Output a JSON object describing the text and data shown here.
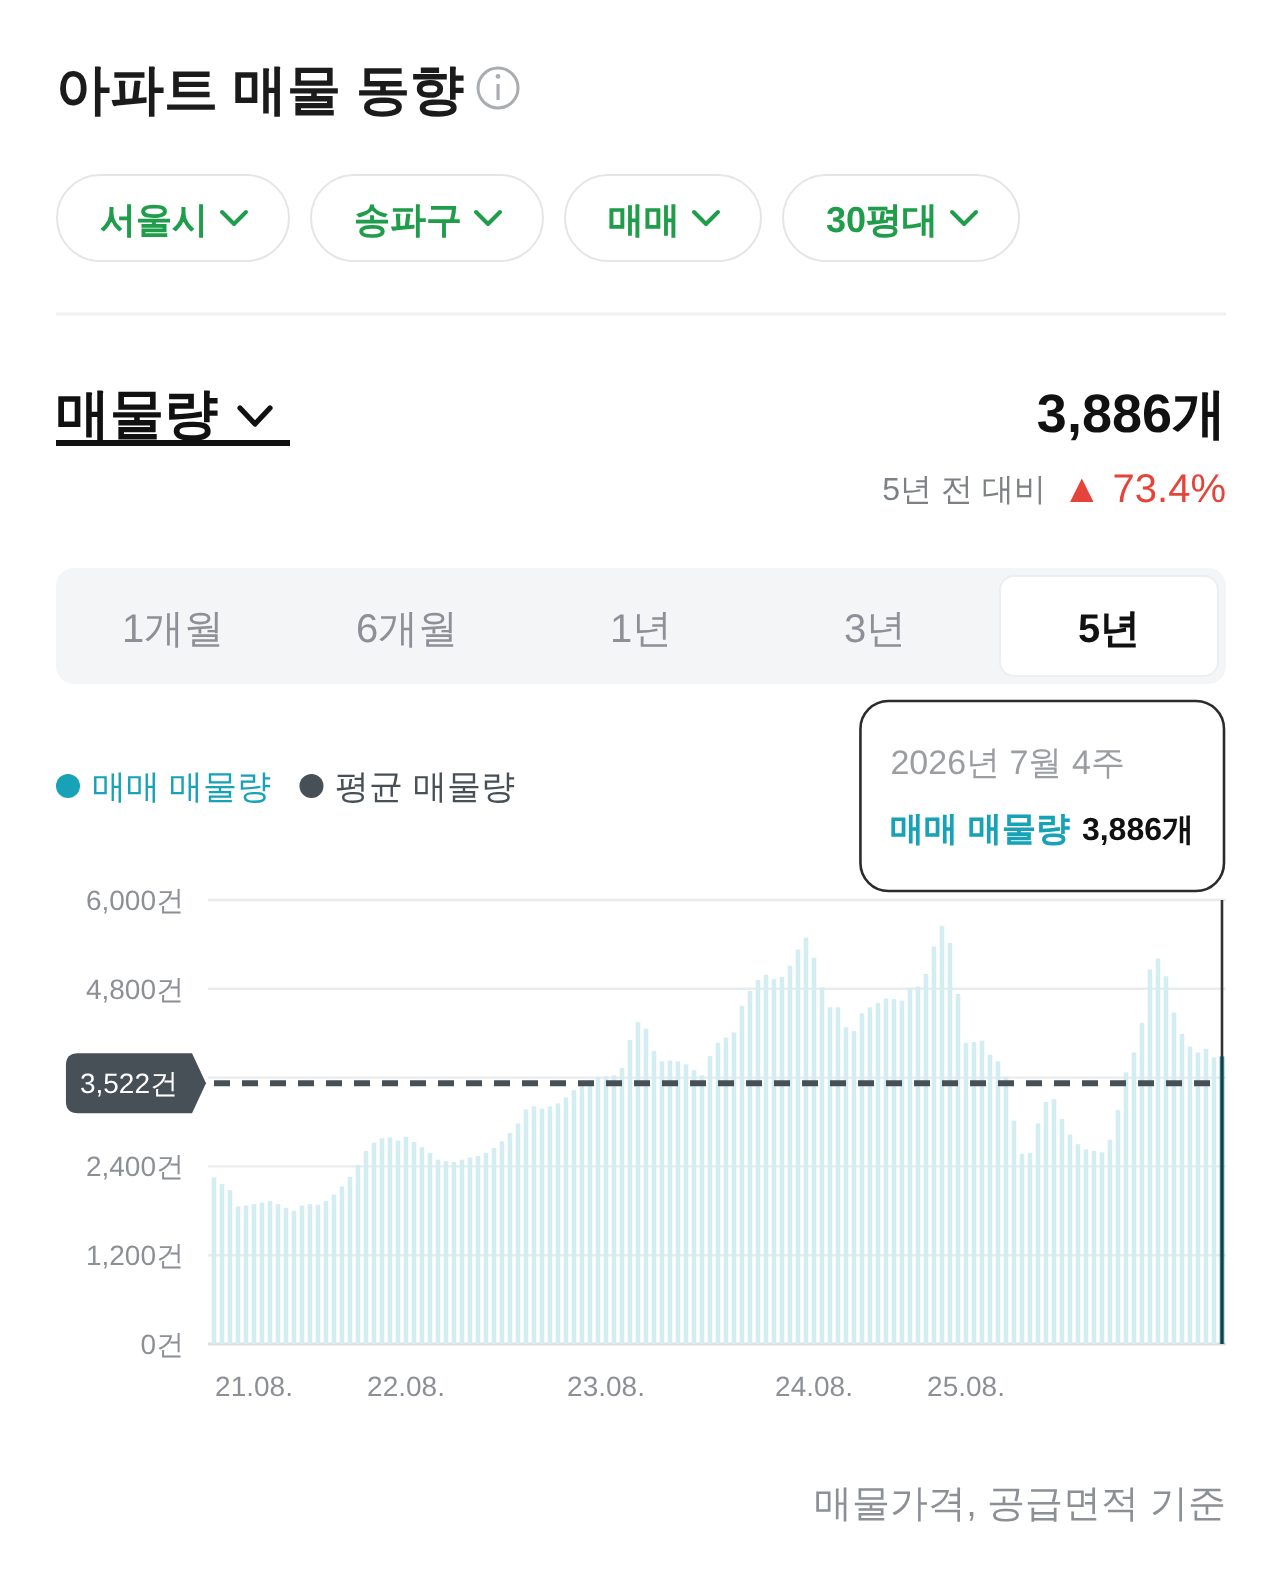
{
  "chart_data": {
    "type": "bar",
    "title": "아파트 매물 동향",
    "categories": [
      null,
      null,
      null,
      null,
      null,
      "21.08.",
      null,
      null,
      null,
      null,
      null,
      null,
      null,
      null,
      null,
      null,
      null,
      null,
      null,
      null,
      null,
      null,
      null,
      null,
      "22.08.",
      null,
      null,
      null,
      null,
      null,
      null,
      null,
      null,
      null,
      null,
      null,
      null,
      null,
      null,
      null,
      null,
      null,
      null,
      null,
      null,
      null,
      null,
      null,
      null,
      "23.08.",
      null,
      null,
      null,
      null,
      null,
      null,
      null,
      null,
      null,
      null,
      null,
      null,
      null,
      null,
      null,
      null,
      null,
      null,
      null,
      null,
      null,
      null,
      null,
      null,
      null,
      "24.08.",
      null,
      null,
      null,
      null,
      null,
      null,
      null,
      null,
      null,
      null,
      null,
      null,
      null,
      null,
      null,
      null,
      null,
      null,
      "25.08.",
      null,
      null,
      null,
      null,
      null,
      null,
      null,
      null,
      null,
      null,
      null,
      null,
      null,
      null,
      null,
      null,
      null,
      null,
      null,
      null,
      null,
      null,
      null,
      null,
      null,
      null,
      null,
      null,
      null,
      null,
      null,
      null
    ],
    "series": [
      {
        "name": "매매 매물량",
        "color": "#17a2b8",
        "colors": [
          "#d3edf2",
          "#d3edf2",
          "#d3edf2",
          "#d3edf2",
          "#d3edf2",
          "#d3edf2",
          "#d3edf2",
          "#d3edf2",
          "#d3edf2",
          "#d3edf2",
          "#d3edf2",
          "#d3edf2",
          "#d3edf2",
          "#d3edf2",
          "#d3edf2",
          "#d3edf2",
          "#d3edf2",
          "#d3edf2",
          "#d3edf2",
          "#d3edf2",
          "#d3edf2",
          "#d3edf2",
          "#d3edf2",
          "#d3edf2",
          "#d3edf2",
          "#d3edf2",
          "#d3edf2",
          "#d3edf2",
          "#d3edf2",
          "#d3edf2",
          "#d3edf2",
          "#d3edf2",
          "#d3edf2",
          "#d3edf2",
          "#d3edf2",
          "#d3edf2",
          "#d3edf2",
          "#d3edf2",
          "#d3edf2",
          "#d3edf2",
          "#d3edf2",
          "#d3edf2",
          "#d3edf2",
          "#d3edf2",
          "#d3edf2",
          "#d3edf2",
          "#d3edf2",
          "#d3edf2",
          "#d3edf2",
          "#d3edf2",
          "#d3edf2",
          "#d3edf2",
          "#d3edf2",
          "#d3edf2",
          "#d3edf2",
          "#d3edf2",
          "#d3edf2",
          "#d3edf2",
          "#d3edf2",
          "#d3edf2",
          "#d3edf2",
          "#d3edf2",
          "#d3edf2",
          "#d3edf2",
          "#d3edf2",
          "#d3edf2",
          "#d3edf2",
          "#d3edf2",
          "#d3edf2",
          "#d3edf2",
          "#d3edf2",
          "#d3edf2",
          "#d3edf2",
          "#d3edf2",
          "#d3edf2",
          "#d3edf2",
          "#d3edf2",
          "#d3edf2",
          "#d3edf2",
          "#d3edf2",
          "#d3edf2",
          "#d3edf2",
          "#d3edf2",
          "#d3edf2",
          "#d3edf2",
          "#d3edf2",
          "#d3edf2",
          "#d3edf2",
          "#d3edf2",
          "#d3edf2",
          "#d3edf2",
          "#d3edf2",
          "#d3edf2",
          "#d3edf2",
          "#d3edf2",
          "#d3edf2",
          "#d3edf2",
          "#d3edf2",
          "#d3edf2",
          "#d3edf2",
          "#d3edf2",
          "#d3edf2",
          "#d3edf2",
          "#d3edf2",
          "#d3edf2",
          "#d3edf2",
          "#d3edf2",
          "#d3edf2",
          "#d3edf2",
          "#d3edf2",
          "#d3edf2",
          "#d3edf2",
          "#d3edf2",
          "#d3edf2",
          "#d3edf2",
          "#d3edf2",
          "#d3edf2",
          "#d3edf2",
          "#d3edf2",
          "#d3edf2",
          "#d3edf2",
          "#d3edf2",
          "#d3edf2",
          "#d3edf2",
          "#d3edf2",
          "#d3edf2",
          "#17a2b8"
        ],
        "values": [
          2250,
          2160,
          2080,
          1860,
          1870,
          1890,
          1910,
          1930,
          1890,
          1840,
          1800,
          1870,
          1890,
          1880,
          1930,
          2020,
          2130,
          2260,
          2420,
          2610,
          2720,
          2780,
          2790,
          2750,
          2800,
          2730,
          2660,
          2580,
          2490,
          2470,
          2460,
          2490,
          2520,
          2540,
          2580,
          2650,
          2740,
          2850,
          2980,
          3170,
          3210,
          3180,
          3210,
          3250,
          3330,
          3430,
          3520,
          3560,
          3610,
          3620,
          3630,
          3730,
          4110,
          4350,
          4260,
          3960,
          3820,
          3830,
          3820,
          3780,
          3700,
          3630,
          3890,
          4070,
          4140,
          4210,
          4570,
          4770,
          4920,
          4990,
          4930,
          4960,
          5110,
          5330,
          5490,
          5220,
          4820,
          4550,
          4550,
          4280,
          4230,
          4470,
          4550,
          4610,
          4670,
          4660,
          4640,
          4810,
          4830,
          5000,
          5370,
          5650,
          5420,
          4730,
          4070,
          4080,
          4100,
          3910,
          3820,
          3610,
          3020,
          2570,
          2580,
          2980,
          3270,
          3310,
          3040,
          2830,
          2700,
          2630,
          2610,
          2590,
          2760,
          3160,
          3670,
          3940,
          4340,
          5060,
          5210,
          4970,
          4480,
          4190,
          4020,
          3940,
          3990,
          3870,
          3886
        ]
      },
      {
        "name": "평균 매물량",
        "type": "line",
        "color": "#474f57",
        "line_style": "dashed",
        "values": [
          3522,
          3522,
          3522,
          3522,
          3522,
          3522,
          3522,
          3522,
          3522,
          3522,
          3522,
          3522,
          3522,
          3522,
          3522,
          3522,
          3522,
          3522,
          3522,
          3522,
          3522,
          3522,
          3522,
          3522,
          3522,
          3522,
          3522,
          3522,
          3522,
          3522,
          3522,
          3522,
          3522,
          3522,
          3522,
          3522,
          3522,
          3522,
          3522,
          3522,
          3522,
          3522,
          3522,
          3522,
          3522,
          3522,
          3522,
          3522,
          3522,
          3522,
          3522,
          3522,
          3522,
          3522,
          3522,
          3522,
          3522,
          3522,
          3522,
          3522,
          3522,
          3522,
          3522,
          3522,
          3522,
          3522,
          3522,
          3522,
          3522,
          3522,
          3522,
          3522,
          3522,
          3522,
          3522,
          3522,
          3522,
          3522,
          3522,
          3522,
          3522,
          3522,
          3522,
          3522,
          3522,
          3522,
          3522,
          3522,
          3522,
          3522,
          3522,
          3522,
          3522,
          3522,
          3522,
          3522,
          3522,
          3522,
          3522,
          3522,
          3522,
          3522,
          3522,
          3522,
          3522,
          3522,
          3522,
          3522,
          3522,
          3522,
          3522,
          3522,
          3522,
          3522,
          3522,
          3522,
          3522,
          3522,
          3522,
          3522,
          3522,
          3522,
          3522,
          3522,
          3522,
          3522,
          3522
        ],
        "value_labels": [
          "3,522건",
          null,
          null,
          null,
          null,
          null,
          null,
          null,
          null,
          null,
          null,
          null,
          null,
          null,
          null,
          null,
          null,
          null,
          null,
          null,
          null,
          null,
          null,
          null,
          null,
          null,
          null,
          null,
          null,
          null,
          null,
          null,
          null,
          null,
          null,
          null,
          null,
          null,
          null,
          null,
          null,
          null,
          null,
          null,
          null,
          null,
          null,
          null,
          null,
          null,
          null,
          null,
          null,
          null,
          null,
          null,
          null,
          null,
          null,
          null,
          null,
          null,
          null,
          null,
          null,
          null,
          null,
          null,
          null,
          null,
          null,
          null,
          null,
          null,
          null,
          null,
          null,
          null,
          null,
          null,
          null,
          null,
          null,
          null,
          null,
          null,
          null,
          null,
          null,
          null,
          null,
          null,
          null,
          null,
          null,
          null,
          null,
          null,
          null,
          null,
          null,
          null,
          null,
          null,
          null,
          null,
          null,
          null,
          null,
          null,
          null,
          null,
          null,
          null,
          null,
          null,
          null,
          null,
          null,
          null,
          null,
          null,
          null,
          null,
          null,
          null,
          null
        ]
      }
    ],
    "ylim": [
      0,
      6000
    ],
    "yticks": [
      {
        "value": 0,
        "label": "0건"
      },
      {
        "value": 1200,
        "label": "1,200건"
      },
      {
        "value": 2400,
        "label": "2,400건"
      },
      {
        "value": 3600,
        "label": null
      },
      {
        "value": 4800,
        "label": "4,800건"
      },
      {
        "value": 6000,
        "label": "6,000건"
      }
    ],
    "grid": "y",
    "legend": "top left",
    "annotations": [
      "서울시",
      "송파구",
      "매매",
      "30평대",
      "매물량",
      "3,886개",
      "5년 전 대비",
      "▲ 73.4%",
      "1개월",
      "6개월",
      "1년",
      "3년",
      "5년",
      "2026년 7월 4주",
      "3,886개",
      "매물가격, 공급면적 기준"
    ]
  }
}
